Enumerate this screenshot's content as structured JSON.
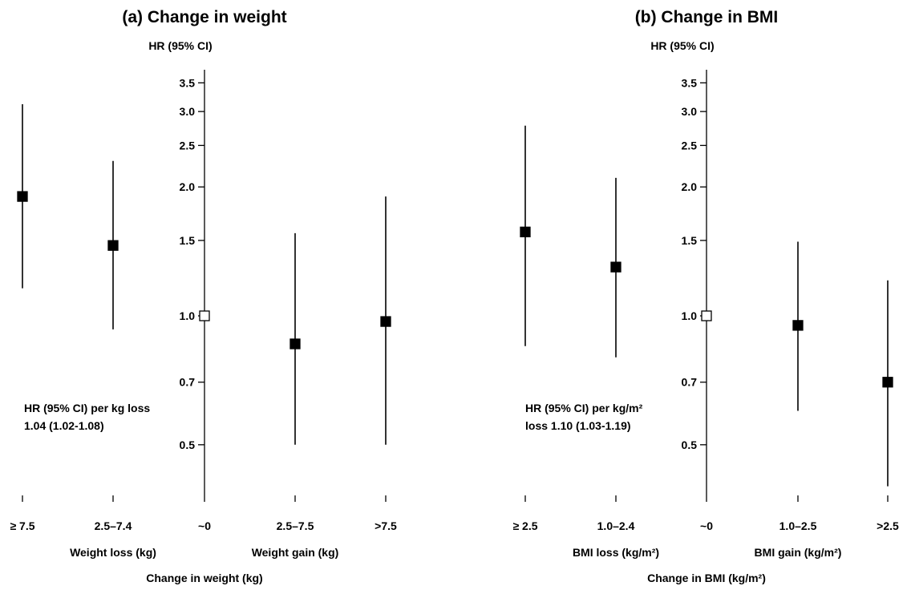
{
  "chart_data": [
    {
      "type": "scatter",
      "subtype": "forest-plot",
      "title": "(a) Change in weight",
      "ylabel": "HR (95% CI)",
      "yscale": "log",
      "ylim": [
        0.4,
        3.5
      ],
      "yticks": [
        0.5,
        0.7,
        1.0,
        1.5,
        2.0,
        2.5,
        3.0,
        3.5
      ],
      "ytick_labels": [
        "0.5",
        "0.7",
        "1.0",
        "1.5",
        "2.0",
        "2.5",
        "3.0",
        "3.5"
      ],
      "categories": [
        "≥ 7.5",
        "2.5–7.4",
        "~0",
        "2.5–7.5",
        ">7.5"
      ],
      "hr": [
        1.9,
        1.46,
        1.0,
        0.86,
        0.97
      ],
      "ci_low": [
        1.16,
        0.93,
        null,
        0.5,
        0.5
      ],
      "ci_high": [
        3.12,
        2.3,
        null,
        1.56,
        1.9
      ],
      "reference_index": 2,
      "group_labels": [
        "Weight loss (kg)",
        "Weight gain (kg)"
      ],
      "xlabel": "Change in weight (kg)",
      "annotation": [
        "HR (95% CI) per kg loss",
        "1.04 (1.02-1.08)"
      ],
      "grid": false
    },
    {
      "type": "scatter",
      "subtype": "forest-plot",
      "title": "(b) Change in BMI",
      "ylabel": "HR (95% CI)",
      "yscale": "log",
      "ylim": [
        0.4,
        3.5
      ],
      "yticks": [
        0.5,
        0.7,
        1.0,
        1.5,
        2.0,
        2.5,
        3.0,
        3.5
      ],
      "ytick_labels": [
        "0.5",
        "0.7",
        "1.0",
        "1.5",
        "2.0",
        "2.5",
        "3.0",
        "3.5"
      ],
      "categories": [
        "≥ 2.5",
        "1.0–2.4",
        "~0",
        "1.0–2.5",
        ">2.5"
      ],
      "hr": [
        1.57,
        1.3,
        1.0,
        0.95,
        0.7
      ],
      "ci_low": [
        0.85,
        0.8,
        null,
        0.6,
        0.4
      ],
      "ci_high": [
        2.78,
        2.1,
        null,
        1.49,
        1.21
      ],
      "reference_index": 2,
      "group_labels": [
        "BMI loss (kg/m²)",
        "BMI gain (kg/m²)"
      ],
      "xlabel": "Change in BMI (kg/m²)",
      "annotation": [
        "HR (95% CI) per kg/m²",
        "loss 1.10 (1.03-1.19)"
      ],
      "grid": false
    }
  ]
}
